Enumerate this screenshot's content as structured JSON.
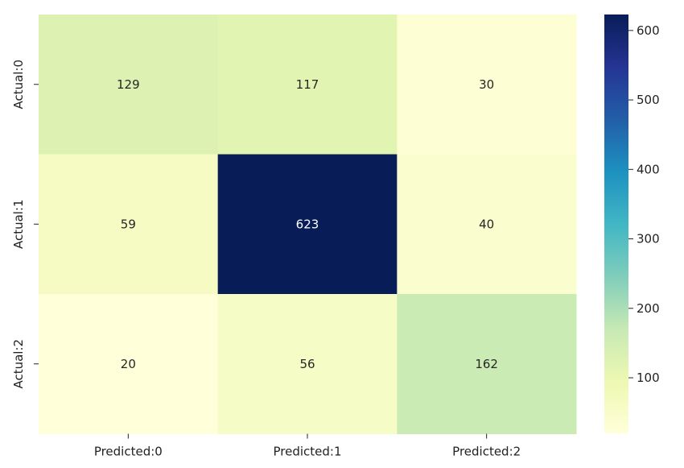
{
  "chart_data": {
    "type": "heatmap",
    "title": "",
    "xlabel": "",
    "ylabel": "",
    "x_categories": [
      "Predicted:0",
      "Predicted:1",
      "Predicted:2"
    ],
    "y_categories": [
      "Actual:0",
      "Actual:1",
      "Actual:2"
    ],
    "values": [
      [
        129,
        117,
        30
      ],
      [
        59,
        623,
        40
      ],
      [
        20,
        56,
        162
      ]
    ],
    "colormap": "YlGnBu",
    "colormap_stops": [
      "#ffffd9",
      "#edf8b1",
      "#c7e9b4",
      "#7fcdbb",
      "#41b6c4",
      "#1d91c0",
      "#225ea8",
      "#253494",
      "#081d58"
    ],
    "value_range": [
      20,
      623
    ],
    "colorbar": {
      "ticks": [
        100,
        200,
        300,
        400,
        500,
        600
      ],
      "tick_labels": [
        "100",
        "200",
        "300",
        "400",
        "500",
        "600"
      ]
    },
    "annot_text_colors": {
      "light_bg": "#262626",
      "dark_bg": "#ffffff"
    }
  }
}
